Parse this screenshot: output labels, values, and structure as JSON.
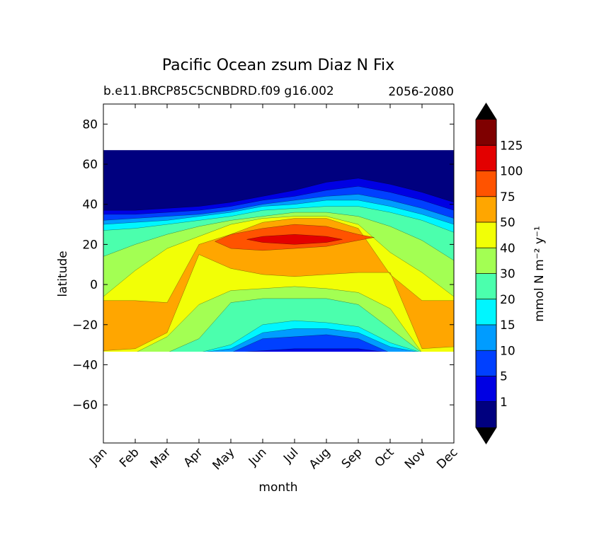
{
  "chart_data": {
    "type": "contour",
    "title": "Pacific Ocean zsum Diaz N Fix",
    "subtitle_left": "b.e11.BRCP85C5CNBDRD.f09 g16.002",
    "subtitle_right": "2056-2080",
    "xlabel": "month",
    "ylabel": "latitude",
    "x_ticks": [
      "Jan",
      "Feb",
      "Mar",
      "Apr",
      "May",
      "Jun",
      "Jul",
      "Aug",
      "Sep",
      "Oct",
      "Nov",
      "Dec"
    ],
    "y_ticks": [
      80,
      60,
      40,
      20,
      0,
      -20,
      -40,
      -60
    ],
    "ylim": [
      -79,
      90
    ],
    "data_lat_range": [
      -34,
      67
    ],
    "colorbar": {
      "label": "mmol N m⁻² y⁻¹",
      "levels": [
        1,
        5,
        10,
        15,
        20,
        30,
        40,
        50,
        75,
        100,
        125
      ],
      "level_labels": [
        "1",
        "5",
        "10",
        "15",
        "20",
        "30",
        "40",
        "50",
        "75",
        "100",
        "125"
      ],
      "colors": [
        "#00007f",
        "#0000e3",
        "#0040ff",
        "#009cff",
        "#00f6ff",
        "#4bffad",
        "#a3ff53",
        "#f2ff06",
        "#ffa600",
        "#ff5300",
        "#e30000",
        "#7f0000"
      ],
      "extend": "both"
    },
    "contour_regions": [
      {
        "min_level": 1,
        "color": "#0000e3",
        "y_top": [
          37,
          37,
          38,
          39,
          41,
          44,
          47,
          51,
          53,
          50,
          46,
          41
        ],
        "y_bottom": [
          -34,
          -34,
          -34,
          -34,
          -34,
          -34,
          -34,
          -34,
          -34,
          -34,
          -34,
          -34
        ]
      },
      {
        "min_level": 5,
        "color": "#0040ff",
        "y_top": [
          35,
          35,
          36,
          37,
          39,
          42,
          44,
          47,
          49,
          46,
          42,
          37
        ],
        "y_bottom": [
          -34,
          -34,
          -34,
          -34,
          -34,
          -33,
          -32,
          -32,
          -32,
          -34,
          -34,
          -34
        ]
      },
      {
        "min_level": 10,
        "color": "#009cff",
        "y_top": [
          32,
          33,
          34,
          35,
          37,
          40,
          42,
          44,
          45,
          42,
          38,
          33
        ],
        "y_bottom": [
          -34,
          -34,
          -34,
          -34,
          -34,
          -27,
          -26,
          -25,
          -27,
          -34,
          -34,
          -34
        ]
      },
      {
        "min_level": 15,
        "color": "#00f6ff",
        "y_top": [
          30,
          31,
          32,
          34,
          36,
          39,
          40,
          42,
          42,
          39,
          35,
          30
        ],
        "y_bottom": [
          -34,
          -34,
          -34,
          -34,
          -32,
          -24,
          -22,
          -22,
          -24,
          -31,
          -34,
          -34
        ]
      },
      {
        "min_level": 20,
        "color": "#4bffad",
        "y_top": [
          27,
          28,
          30,
          32,
          34,
          37,
          38,
          39,
          39,
          36,
          32,
          26
        ],
        "y_bottom": [
          -34,
          -34,
          -34,
          -34,
          -30,
          -20,
          -18,
          -19,
          -21,
          -29,
          -34,
          -34
        ]
      },
      {
        "min_level": 30,
        "color": "#a3ff53",
        "y_top": [
          14,
          20,
          25,
          29,
          32,
          34,
          36,
          36,
          34,
          29,
          22,
          12
        ],
        "y_bottom": [
          -34,
          -34,
          -34,
          -27,
          -9,
          -7,
          -7,
          -7,
          -10,
          -22,
          -34,
          -34
        ]
      },
      {
        "min_level": 40,
        "color": "#f2ff06",
        "y_top": [
          -6,
          7,
          18,
          24,
          30,
          33,
          34,
          34,
          30,
          16,
          6,
          -6
        ],
        "y_bottom": [
          -34,
          -34,
          -26,
          -10,
          -3,
          -2,
          -1,
          -2,
          -4,
          -12,
          -34,
          -34
        ]
      },
      {
        "min_level": 50,
        "color": "#ffa600",
        "y_top": [
          -8,
          -8,
          -9,
          20,
          25,
          31,
          33,
          33,
          28,
          5,
          -8,
          -8
        ],
        "y_bottom": [
          -33,
          -32,
          -24,
          15,
          8,
          5,
          4,
          5,
          6,
          6,
          -32,
          -31
        ]
      },
      {
        "min_level": 75,
        "color": "#ff5300",
        "y_top": [
          null,
          null,
          null,
          null,
          25,
          28,
          30,
          29,
          25,
          null,
          null,
          null
        ],
        "y_bottom": [
          null,
          null,
          null,
          null,
          18,
          17,
          18,
          19,
          22,
          null,
          null,
          null
        ]
      },
      {
        "min_level": 100,
        "color": "#e30000",
        "y_top": [
          null,
          null,
          null,
          null,
          null,
          24,
          25,
          24,
          null,
          null,
          null,
          null
        ],
        "y_bottom": [
          null,
          null,
          null,
          null,
          null,
          21,
          20,
          21,
          null,
          null,
          null,
          null
        ]
      }
    ]
  }
}
